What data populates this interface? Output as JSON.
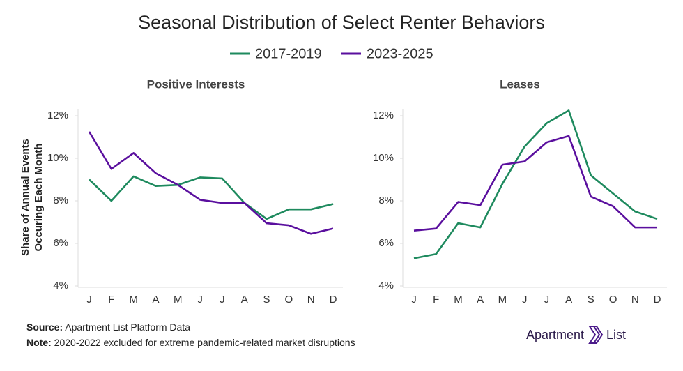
{
  "header": {
    "title": "Seasonal Distribution of Select Renter Behaviors"
  },
  "chart_data": [
    {
      "type": "line",
      "title": "Positive Interests",
      "ylabel": [
        "Share of Annual Events",
        "Occuring Each Month"
      ],
      "categories": [
        "J",
        "F",
        "M",
        "A",
        "M",
        "J",
        "J",
        "A",
        "S",
        "O",
        "N",
        "D"
      ],
      "series": [
        {
          "name": "2017-2019",
          "color": "#1e8a5e",
          "values": [
            9.0,
            8.0,
            9.15,
            8.7,
            8.75,
            9.1,
            9.05,
            7.9,
            7.15,
            7.6,
            7.6,
            7.85
          ]
        },
        {
          "name": "2023-2025",
          "color": "#5a0f9e",
          "values": [
            11.25,
            9.5,
            10.25,
            9.3,
            8.75,
            8.05,
            7.9,
            7.9,
            6.95,
            6.85,
            6.45,
            6.7
          ]
        }
      ],
      "ylim": [
        4,
        12
      ],
      "yticks": [
        {
          "value": 4,
          "label": "4%"
        },
        {
          "value": 6,
          "label": "6%"
        },
        {
          "value": 8,
          "label": "8%"
        },
        {
          "value": 10,
          "label": "10%"
        },
        {
          "value": 12,
          "label": "12%"
        }
      ]
    },
    {
      "type": "line",
      "title": "Leases",
      "categories": [
        "J",
        "F",
        "M",
        "A",
        "M",
        "J",
        "J",
        "A",
        "S",
        "O",
        "N",
        "D"
      ],
      "series": [
        {
          "name": "2017-2019",
          "color": "#1e8a5e",
          "values": [
            5.3,
            5.5,
            6.95,
            6.75,
            8.8,
            10.55,
            11.65,
            12.25,
            9.2,
            8.35,
            7.5,
            7.15
          ]
        },
        {
          "name": "2023-2025",
          "color": "#5a0f9e",
          "values": [
            6.6,
            6.7,
            7.95,
            7.8,
            9.7,
            9.85,
            10.75,
            11.05,
            8.2,
            7.75,
            6.75,
            6.75
          ]
        }
      ],
      "ylim": [
        4,
        12
      ],
      "yticks": [
        {
          "value": 4,
          "label": "4%"
        },
        {
          "value": 6,
          "label": "6%"
        },
        {
          "value": 8,
          "label": "8%"
        },
        {
          "value": 10,
          "label": "10%"
        },
        {
          "value": 12,
          "label": "12%"
        }
      ]
    }
  ],
  "footer": {
    "source_label": "Source:",
    "source": "Apartment List Platform Data",
    "note_label": "Note:",
    "note": "2020-2022 excluded for extreme pandemic-related market disruptions"
  },
  "logo": {
    "word1": "Apartment",
    "word2": "List"
  }
}
